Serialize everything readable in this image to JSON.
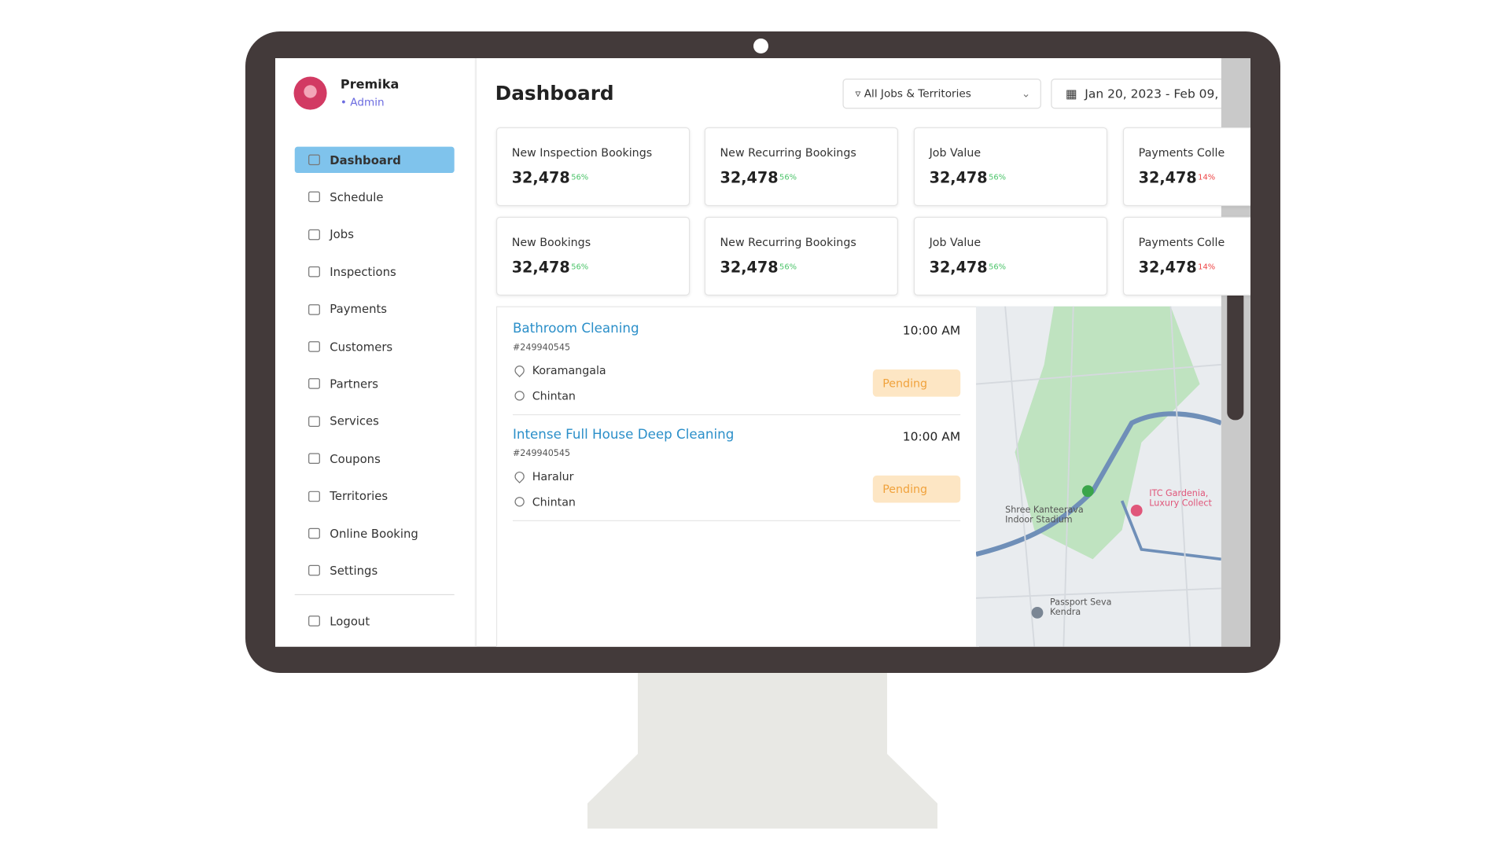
{
  "user": {
    "name": "Premika",
    "role": "• Admin"
  },
  "nav": [
    "Dashboard",
    "Schedule",
    "Jobs",
    "Inspections",
    "Payments",
    "Customers",
    "Partners",
    "Services",
    "Coupons",
    "Territories",
    "Online Booking",
    "Settings"
  ],
  "logout": "Logout",
  "header": {
    "title": "Dashboard",
    "filter": "All Jobs & Territories",
    "date": "Jan 20, 2023 - Feb 09,"
  },
  "cards": [
    [
      {
        "label": "New Inspection Bookings",
        "value": "32,478",
        "change": "56%"
      },
      {
        "label": "New Recurring Bookings",
        "value": "32,478",
        "change": "56%"
      },
      {
        "label": "Job Value",
        "value": "32,478",
        "change": "56%"
      },
      {
        "label": "Payments Colle",
        "value": "32,478",
        "change": "14%"
      }
    ],
    [
      {
        "label": "New Bookings",
        "value": "32,478",
        "change": "56%"
      },
      {
        "label": "New Recurring Bookings",
        "value": "32,478",
        "change": "56%"
      },
      {
        "label": "Job Value",
        "value": "32,478",
        "change": "56%"
      },
      {
        "label": "Payments Colle",
        "value": "32,478",
        "change": "14%"
      }
    ]
  ],
  "jobs": [
    {
      "title": "Bathroom Cleaning",
      "id": "#249940545",
      "location": "Koramangala",
      "person": "Chintan",
      "time": "10:00 AM",
      "status": "Pending"
    },
    {
      "title": "Intense Full House Deep Cleaning",
      "id": "#249940545",
      "location": "Haralur",
      "person": "Chintan",
      "time": "10:00 AM",
      "status": "Pending"
    }
  ],
  "map": {
    "labels": [
      "Shree Kanteerava Indoor Stadium",
      "ITC Gardenia, Luxury Collect",
      "Passport Seva Kendra"
    ]
  }
}
